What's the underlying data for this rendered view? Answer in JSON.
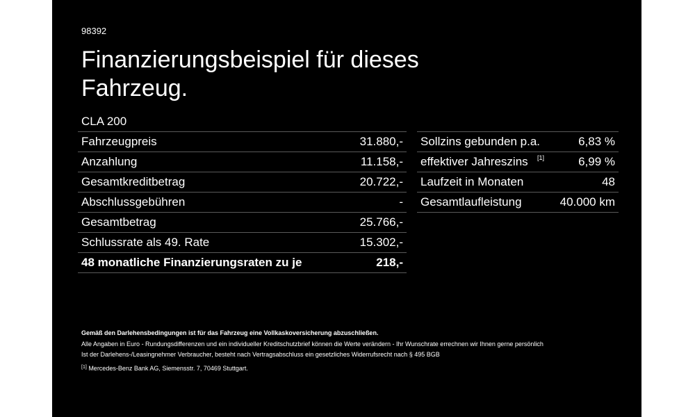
{
  "header": {
    "code": "98392",
    "title": "Finanzierungsbeispiel für dieses Fahrzeug.",
    "model": "CLA 200"
  },
  "left_table": {
    "rows": [
      [
        "Fahrzeugpreis",
        "31.880,-"
      ],
      [
        "Anzahlung",
        "11.158,-"
      ],
      [
        "Gesamtkreditbetrag",
        "20.722,-"
      ],
      [
        "Abschlussgebühren",
        "-"
      ],
      [
        "Gesamtbetrag",
        "25.766,-"
      ],
      [
        "Schlussrate als 49. Rate",
        "15.302,-"
      ],
      [
        "48 monatliche Finanzierungsraten zu je",
        "218,-"
      ]
    ]
  },
  "right_table": {
    "rows": [
      [
        "Sollzins gebunden p.a.",
        "6,83 %"
      ],
      [
        "effektiver Jahreszins",
        "6,99 %"
      ],
      [
        "Laufzeit in Monaten",
        "48"
      ],
      [
        "Gesamtlaufleistung",
        "40.000 km"
      ]
    ],
    "note_mark": "[1]"
  },
  "footer": {
    "bold": "Gemäß den Darlehensbedingungen ist für das Fahrzeug eine Vollkaskoversicherung abzuschließen.",
    "lines": [
      "Alle Angaben in Euro - Rundungsdifferenzen und ein individueller Kreditschutzbrief können die Werte verändern - Ihr Wunschrate errechnen wir Ihnen gerne persönlich",
      "Ist der Darlehens-/Leasingnehmer Verbraucher, besteht nach Vertragsabschluss ein gesetzliches Widerrufsrecht nach § 495 BGB"
    ],
    "footnote_mark": "[1]",
    "footnote": "Mercedes-Benz Bank AG, Siemensstr. 7, 70469 Stuttgart."
  }
}
